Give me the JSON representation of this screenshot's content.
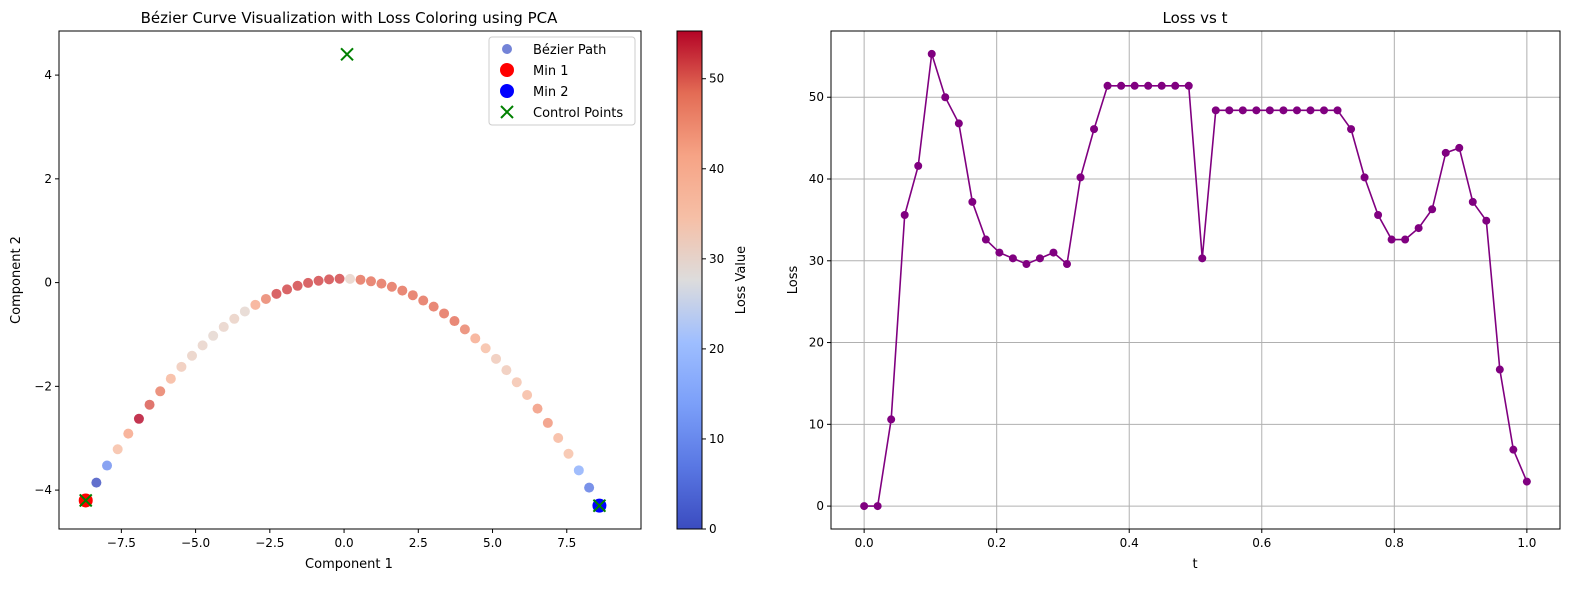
{
  "chart_data": [
    {
      "type": "scatter",
      "title": "Bézier Curve Visualization with Loss Coloring using PCA",
      "xlabel": "Component 1",
      "ylabel": "Component 2",
      "xlim": [
        -9.6,
        10.0
      ],
      "ylim": [
        -4.75,
        4.85
      ],
      "xticks": [
        -7.5,
        -5.0,
        -2.5,
        0.0,
        2.5,
        5.0,
        7.5
      ],
      "xtick_labels": [
        "−7.5",
        "−5.0",
        "−2.5",
        "0.0",
        "2.5",
        "5.0",
        "7.5"
      ],
      "yticks": [
        -4,
        -2,
        0,
        2,
        4
      ],
      "ytick_labels": [
        "−4",
        "−2",
        "0",
        "2",
        "4"
      ],
      "grid": false,
      "legend_position": "top-right",
      "legend": [
        "Bézier Path",
        "Min 1",
        "Min 2",
        "Control Points"
      ],
      "colormap": "coolwarm",
      "colorbar": {
        "label": "Loss Value",
        "range": [
          0,
          55.3
        ],
        "ticks": [
          0,
          10,
          20,
          30,
          40,
          50
        ],
        "tick_labels": [
          "0",
          "10",
          "20",
          "30",
          "40",
          "50"
        ]
      },
      "bezier_path": {
        "p0": [
          -8.7,
          -4.2
        ],
        "p1": [
          0.1,
          4.4
        ],
        "p2": [
          8.6,
          -4.3
        ]
      },
      "min1": {
        "x": -8.7,
        "y": -4.2,
        "color": "#ff0000"
      },
      "min2": {
        "x": 8.6,
        "y": -4.3,
        "color": "#0000ff"
      },
      "control_points": {
        "x": [
          -8.7,
          0.1,
          8.6
        ],
        "y": [
          -4.2,
          4.4,
          -4.3
        ],
        "color": "#008000"
      }
    },
    {
      "type": "line",
      "title": "Loss vs t",
      "xlabel": "t",
      "ylabel": "Loss",
      "xlim": [
        -0.05,
        1.05
      ],
      "ylim": [
        -2.8,
        58.1
      ],
      "xticks": [
        0.0,
        0.2,
        0.4,
        0.6,
        0.8,
        1.0
      ],
      "xtick_labels": [
        "0.0",
        "0.2",
        "0.4",
        "0.6",
        "0.8",
        "1.0"
      ],
      "yticks": [
        0,
        10,
        20,
        30,
        40,
        50
      ],
      "ytick_labels": [
        "0",
        "10",
        "20",
        "30",
        "40",
        "50"
      ],
      "grid": true,
      "color": "#800080",
      "x": [
        0.0,
        0.0204,
        0.0408,
        0.0612,
        0.0816,
        0.102,
        0.1224,
        0.1429,
        0.1633,
        0.1837,
        0.2041,
        0.2245,
        0.2449,
        0.2653,
        0.2857,
        0.3061,
        0.3265,
        0.3469,
        0.3673,
        0.3878,
        0.4082,
        0.4286,
        0.449,
        0.4694,
        0.4898,
        0.5102,
        0.5306,
        0.551,
        0.5714,
        0.5918,
        0.6122,
        0.6327,
        0.6531,
        0.6735,
        0.6939,
        0.7143,
        0.7347,
        0.7551,
        0.7755,
        0.7959,
        0.8163,
        0.8367,
        0.8571,
        0.8776,
        0.898,
        0.9184,
        0.9388,
        0.9592,
        0.9796,
        1.0
      ],
      "y": [
        0,
        0,
        10.6,
        35.6,
        41.6,
        55.3,
        50.0,
        46.8,
        37.2,
        32.6,
        31.0,
        30.3,
        29.6,
        30.3,
        31.0,
        29.6,
        40.2,
        46.1,
        51.4,
        51.4,
        51.4,
        51.4,
        51.4,
        51.4,
        51.4,
        30.3,
        48.4,
        48.4,
        48.4,
        48.4,
        48.4,
        48.4,
        48.4,
        48.4,
        48.4,
        48.4,
        46.1,
        40.2,
        35.6,
        32.6,
        32.6,
        34.0,
        36.3,
        43.2,
        43.8,
        37.2,
        34.9,
        16.7,
        6.9,
        3.0
      ]
    }
  ]
}
